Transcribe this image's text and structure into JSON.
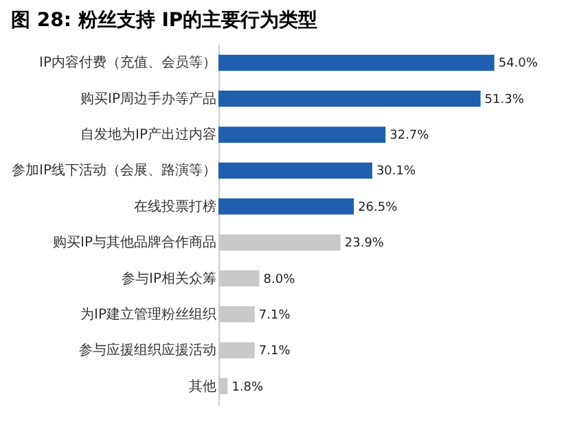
{
  "chart_data": {
    "type": "bar",
    "orientation": "horizontal",
    "title": "图 28: 粉丝支持 IP的主要行为类型",
    "categories": [
      "IP内容付费（充值、会员等）",
      "购买IP周边手办等产品",
      "自发地为IP产出过内容",
      "参加IP线下活动（会展、路演等）",
      "在线投票打榜",
      "购买IP与其他品牌合作商品",
      "参与IP相关众筹",
      "为IP建立管理粉丝组织",
      "参与应援组织应援活动",
      "其他"
    ],
    "values": [
      54.0,
      51.3,
      32.7,
      30.1,
      26.5,
      23.9,
      8.0,
      7.1,
      7.1,
      1.8
    ],
    "value_labels": [
      "54.0%",
      "51.3%",
      "32.7%",
      "30.1%",
      "26.5%",
      "23.9%",
      "8.0%",
      "7.1%",
      "7.1%",
      "1.8%"
    ],
    "colors": [
      "#1f5fae",
      "#1f5fae",
      "#1f5fae",
      "#1f5fae",
      "#1f5fae",
      "#c9c9c9",
      "#c9c9c9",
      "#c9c9c9",
      "#c9c9c9",
      "#c9c9c9"
    ],
    "grid": false
  }
}
